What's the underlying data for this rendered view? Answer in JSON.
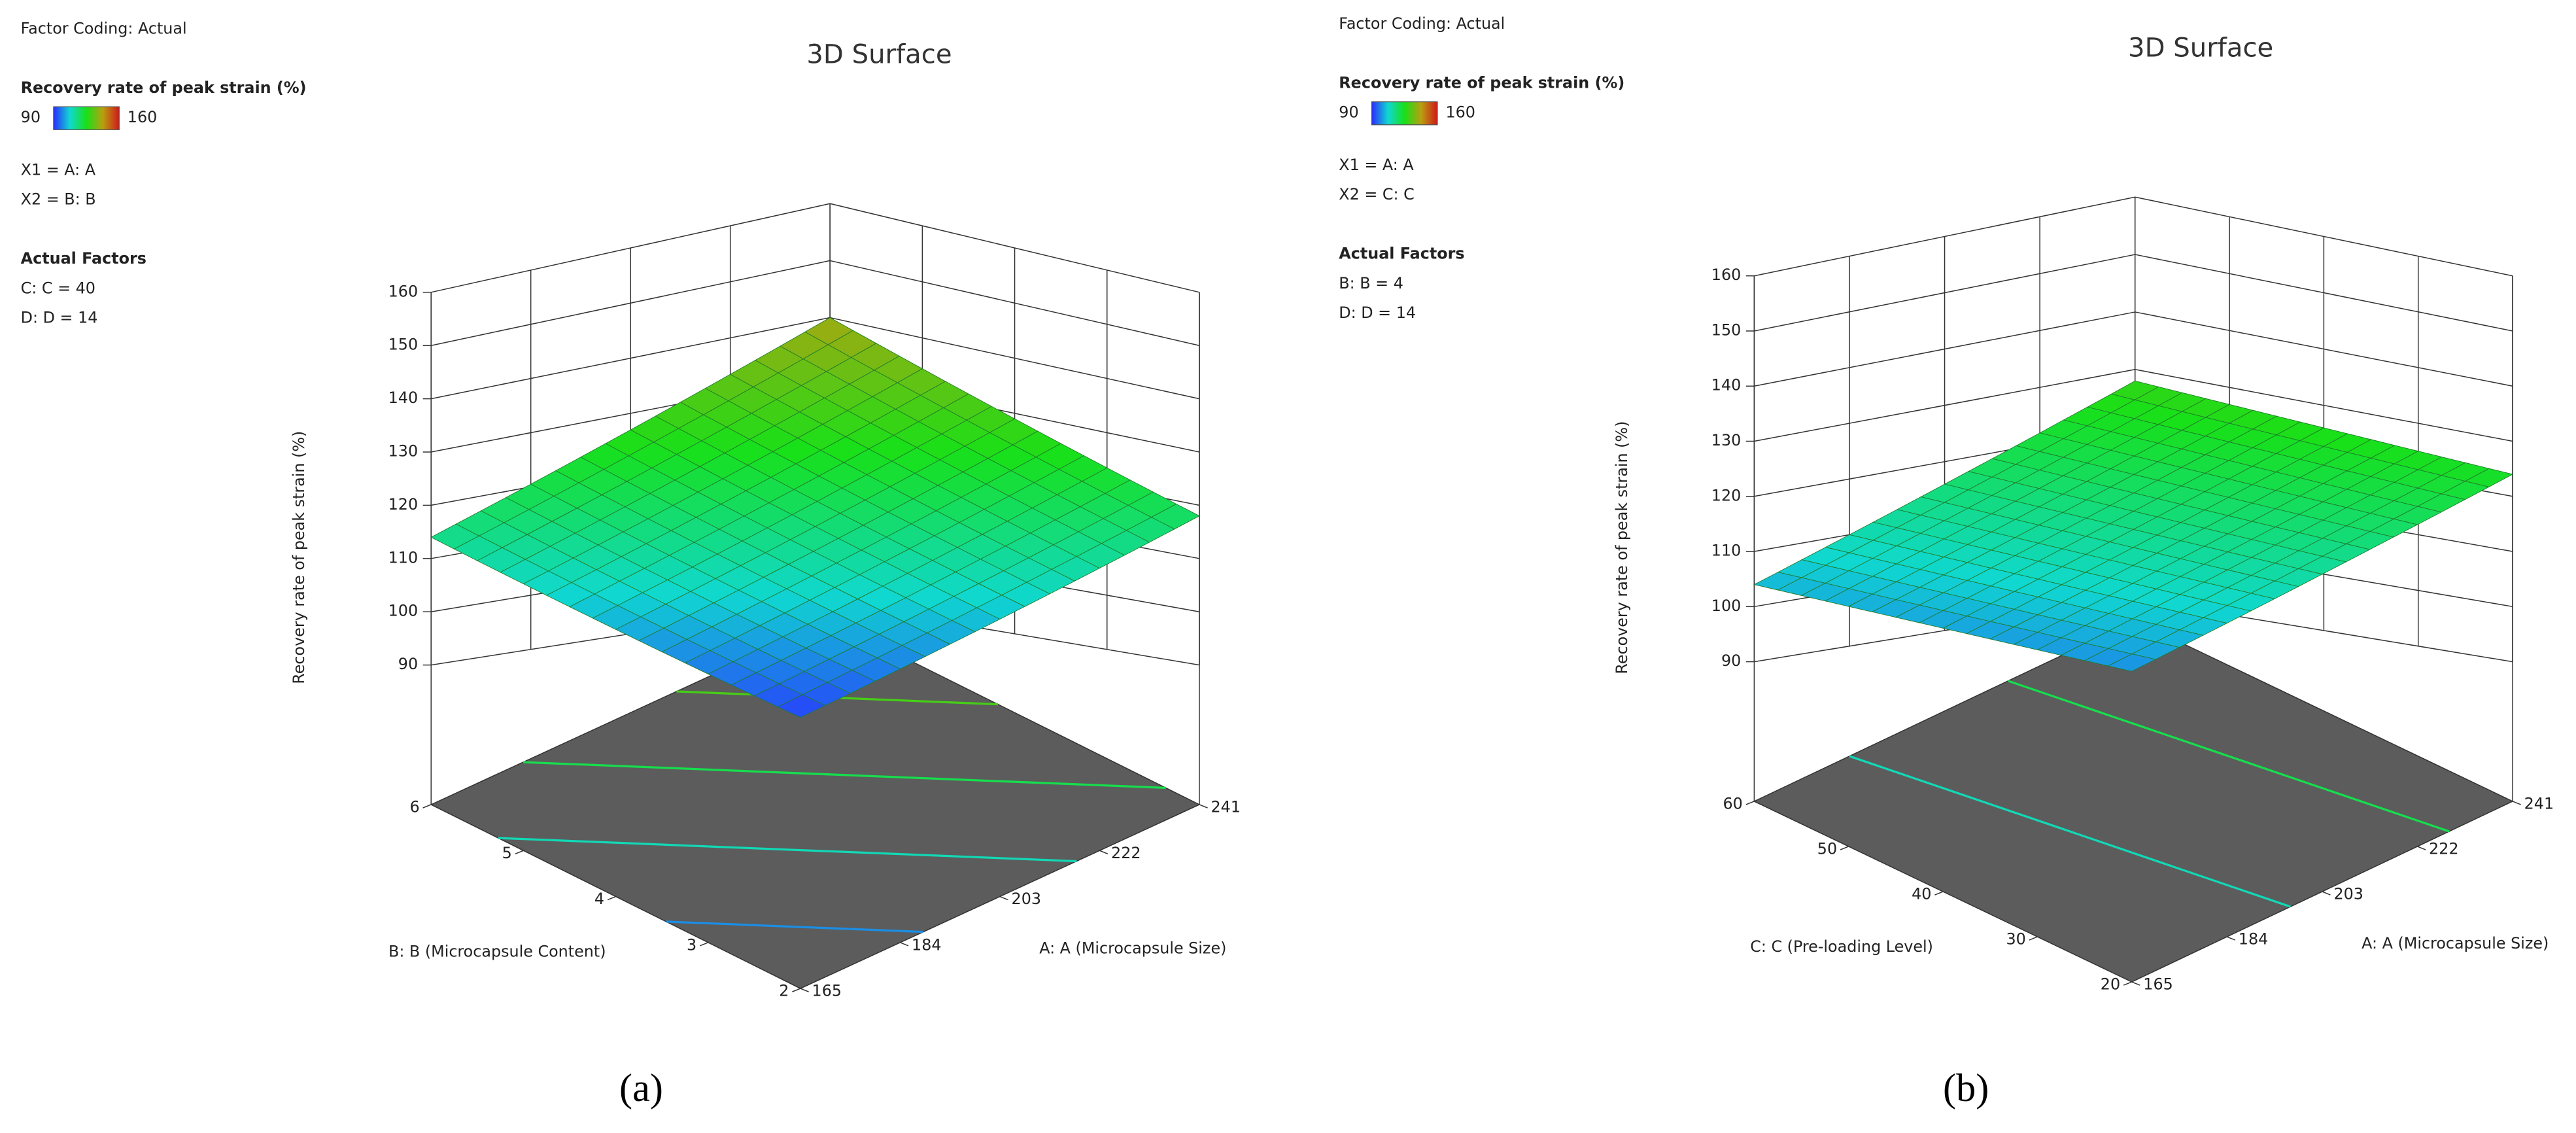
{
  "chart_data": [
    {
      "type": "surface",
      "title": "3D Surface",
      "factor_coding": "Factor Coding: Actual",
      "legend_title": "Recovery rate of peak strain (%)",
      "legend_min": 90,
      "legend_max": 160,
      "colormap": [
        "#2a2cff",
        "#10d8d0",
        "#18e018",
        "#b8a010",
        "#d01818"
      ],
      "x_factor": "X1 = A: A",
      "y_factor": "X2 = B: B",
      "actual_factors_title": "Actual Factors",
      "actual_factors": [
        "C: C = 40",
        "D: D = 14"
      ],
      "xlabel": "A: A (Microcapsule Size)",
      "ylabel": "B: B (Microcapsule Content)",
      "zlabel": "Recovery rate of peak strain (%)",
      "x": [
        165,
        184,
        203,
        222,
        241
      ],
      "y": [
        2,
        3,
        4,
        5,
        6
      ],
      "z": [
        [
          92,
          98.5,
          105,
          111.5,
          118
        ],
        [
          97.5,
          104,
          110.5,
          117,
          123.5
        ],
        [
          103,
          109.5,
          116,
          122.5,
          129
        ],
        [
          108.5,
          115,
          121.5,
          128,
          134.5
        ],
        [
          114,
          120.5,
          127,
          133.5,
          140
        ]
      ],
      "xlim": [
        165,
        241
      ],
      "ylim": [
        2,
        6
      ],
      "zlim": [
        90,
        160
      ],
      "xticks": [
        165,
        184,
        203,
        222,
        241
      ],
      "yticks": [
        2,
        3,
        4,
        5,
        6
      ],
      "zticks": [
        90,
        100,
        110,
        120,
        130,
        140,
        150,
        160
      ],
      "caption": "(a)"
    },
    {
      "type": "surface",
      "title": "3D Surface",
      "factor_coding": "Factor Coding: Actual",
      "legend_title": "Recovery rate of peak strain (%)",
      "legend_min": 90,
      "legend_max": 160,
      "colormap": [
        "#2a2cff",
        "#10d8d0",
        "#18e018",
        "#b8a010",
        "#d01818"
      ],
      "x_factor": "X1 = A: A",
      "y_factor": "X2 = C: C",
      "actual_factors_title": "Actual Factors",
      "actual_factors": [
        "B: B = 4",
        "D: D = 14"
      ],
      "xlabel": "A: A (Microcapsule Size)",
      "ylabel": "C: C (Pre-loading Level)",
      "zlabel": "Recovery rate of peak strain (%)",
      "x": [
        165,
        184,
        203,
        222,
        241
      ],
      "y": [
        20,
        30,
        40,
        50,
        60
      ],
      "z": [
        [
          100,
          106,
          112,
          118,
          124
        ],
        [
          101,
          107,
          113,
          119,
          125
        ],
        [
          102,
          108,
          114,
          120,
          126
        ],
        [
          103,
          109,
          115,
          121,
          127
        ],
        [
          104,
          110,
          116,
          122,
          128
        ]
      ],
      "xlim": [
        165,
        241
      ],
      "ylim": [
        20,
        60
      ],
      "zlim": [
        90,
        160
      ],
      "xticks": [
        165,
        184,
        203,
        222,
        241
      ],
      "yticks": [
        20,
        30,
        40,
        50,
        60
      ],
      "zticks": [
        90,
        100,
        110,
        120,
        130,
        140,
        150,
        160
      ],
      "caption": "(b)"
    }
  ]
}
